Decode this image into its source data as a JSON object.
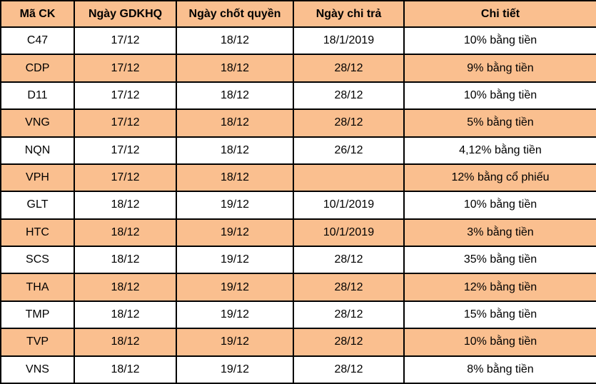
{
  "table": {
    "columns": [
      {
        "key": "stock-code",
        "label": "Mã CK"
      },
      {
        "key": "ex-dividend-date",
        "label": "Ngày GDKHQ"
      },
      {
        "key": "record-date",
        "label": "Ngày chốt quyền"
      },
      {
        "key": "payment-date",
        "label": "Ngày chi trả"
      },
      {
        "key": "detail",
        "label": "Chi tiết"
      }
    ],
    "rows": [
      [
        "C47",
        "17/12",
        "18/12",
        "18/1/2019",
        "10% bằng tiền"
      ],
      [
        "CDP",
        "17/12",
        "18/12",
        "28/12",
        "9% bằng tiền"
      ],
      [
        "D11",
        "17/12",
        "18/12",
        "28/12",
        "10% bằng tiền"
      ],
      [
        "VNG",
        "17/12",
        "18/12",
        "28/12",
        "5% bằng tiền"
      ],
      [
        "NQN",
        "17/12",
        "18/12",
        "26/12",
        "4,12% bằng tiền"
      ],
      [
        "VPH",
        "17/12",
        "18/12",
        "",
        "12% bằng cổ phiếu"
      ],
      [
        "GLT",
        "18/12",
        "19/12",
        "10/1/2019",
        "10% bằng tiền"
      ],
      [
        "HTC",
        "18/12",
        "19/12",
        "10/1/2019",
        "3% bằng tiền"
      ],
      [
        "SCS",
        "18/12",
        "19/12",
        "28/12",
        "35% bằng tiền"
      ],
      [
        "THA",
        "18/12",
        "19/12",
        "28/12",
        "12% bằng tiền"
      ],
      [
        "TMP",
        "18/12",
        "19/12",
        "28/12",
        "15% bằng tiền"
      ],
      [
        "TVP",
        "18/12",
        "19/12",
        "28/12",
        "10% bằng tiền"
      ],
      [
        "VNS",
        "18/12",
        "19/12",
        "28/12",
        "8% bằng tiền"
      ]
    ],
    "colors": {
      "header_bg": "#FABF8F",
      "band_bg": "#FABF8F",
      "row_bg": "#FFFFFF",
      "border": "#000000",
      "text": "#000000"
    }
  }
}
